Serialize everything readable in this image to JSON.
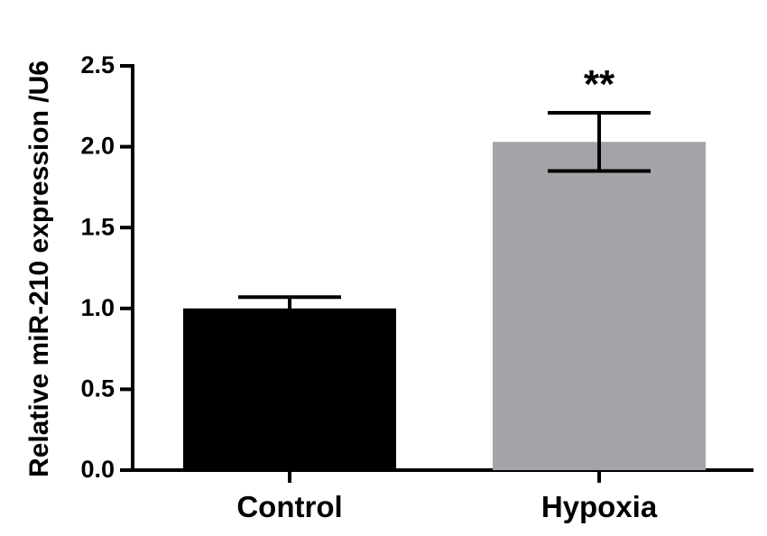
{
  "chart_data": {
    "type": "bar",
    "title": "",
    "xlabel": "",
    "ylabel": "Relative miR-210 expression /U6",
    "ylim": [
      0,
      2.5
    ],
    "yticks": [
      0.0,
      0.5,
      1.0,
      1.5,
      2.0,
      2.5
    ],
    "ytick_labels": [
      "0.0",
      "0.5",
      "1.0",
      "1.5",
      "2.0",
      "2.5"
    ],
    "categories": [
      "Control",
      "Hypoxia"
    ],
    "values": [
      1.0,
      2.03
    ],
    "error": [
      0.07,
      0.18
    ],
    "colors": [
      "#000000",
      "#a4a4a8"
    ],
    "annotations": [
      "",
      "**"
    ],
    "grid": false,
    "legend": "none"
  }
}
